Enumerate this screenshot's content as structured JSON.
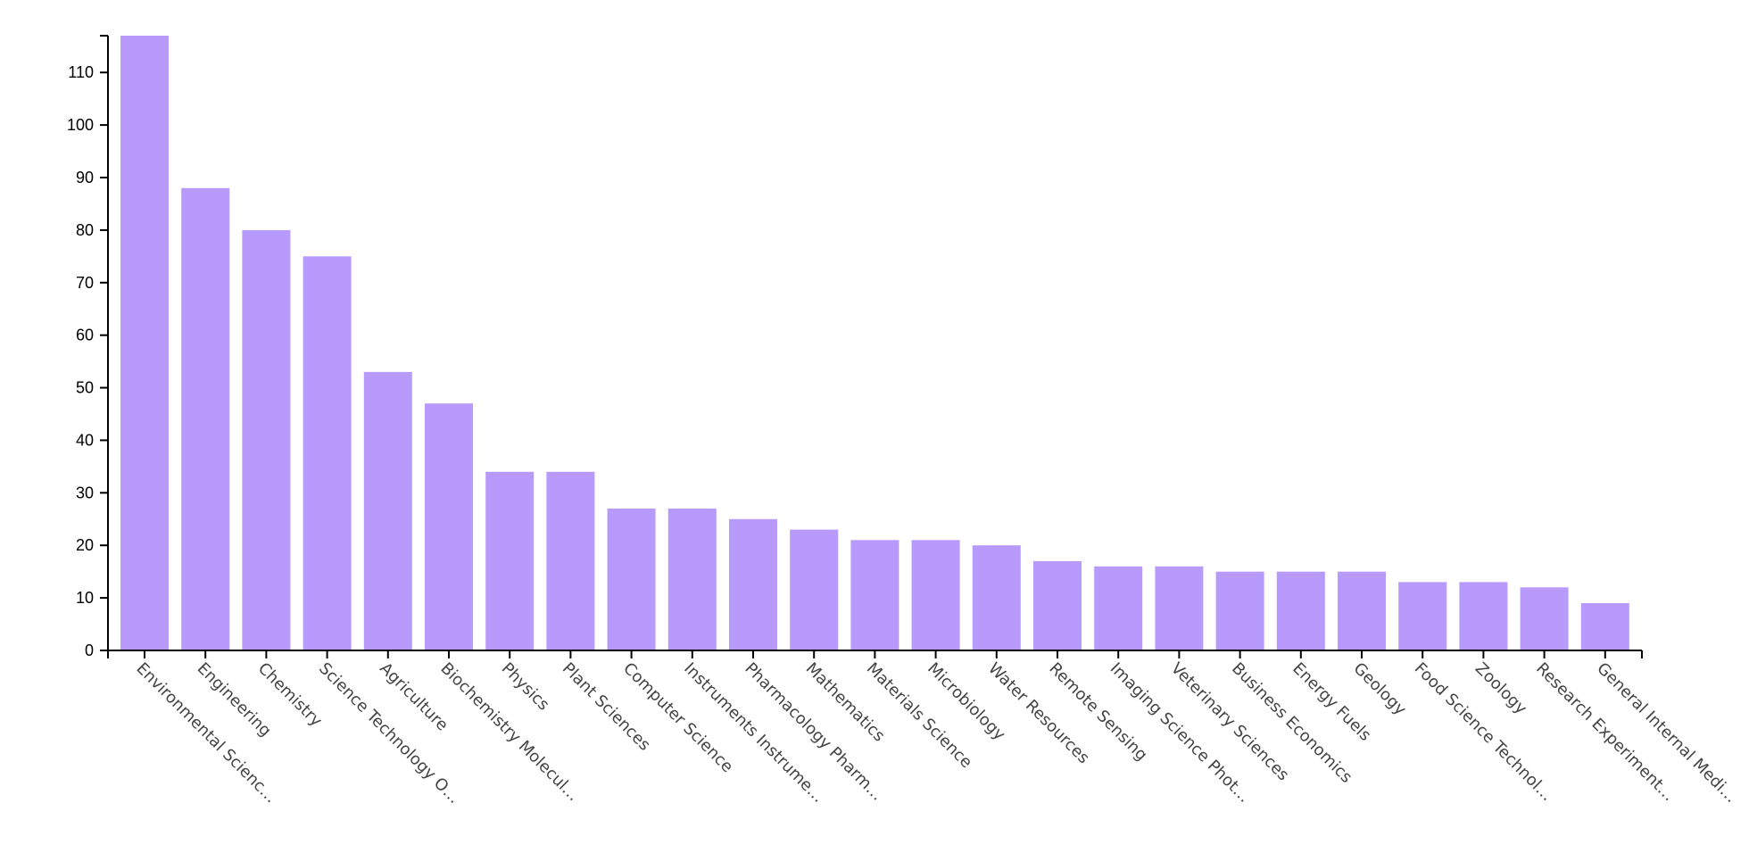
{
  "chart_data": {
    "type": "bar",
    "title": "",
    "xlabel": "",
    "ylabel": "",
    "ylim": [
      0,
      117
    ],
    "yticks": [
      0,
      10,
      20,
      30,
      40,
      50,
      60,
      70,
      80,
      90,
      100,
      110
    ],
    "grid": false,
    "legend": "none",
    "bar_color": "#b899fc",
    "axis_color": "#000000",
    "label_color": "#444444",
    "categories": [
      "Environmental Scienc…",
      "Engineering",
      "Chemistry",
      "Science Technology O…",
      "Agriculture",
      "Biochemistry Molecul…",
      "Physics",
      "Plant Sciences",
      "Computer Science",
      "Instruments Instrume…",
      "Pharmacology Pharm…",
      "Mathematics",
      "Materials Science",
      "Microbiology",
      "Water Resources",
      "Remote Sensing",
      "Imaging Science Phot…",
      "Veterinary Sciences",
      "Business Economics",
      "Energy Fuels",
      "Geology",
      "Food Science Technol…",
      "Zoology",
      "Research Experiment…",
      "General Internal Medi…"
    ],
    "values": [
      117,
      88,
      80,
      75,
      53,
      47,
      34,
      34,
      27,
      27,
      25,
      23,
      21,
      21,
      20,
      17,
      16,
      16,
      15,
      15,
      15,
      13,
      13,
      12,
      9
    ]
  }
}
